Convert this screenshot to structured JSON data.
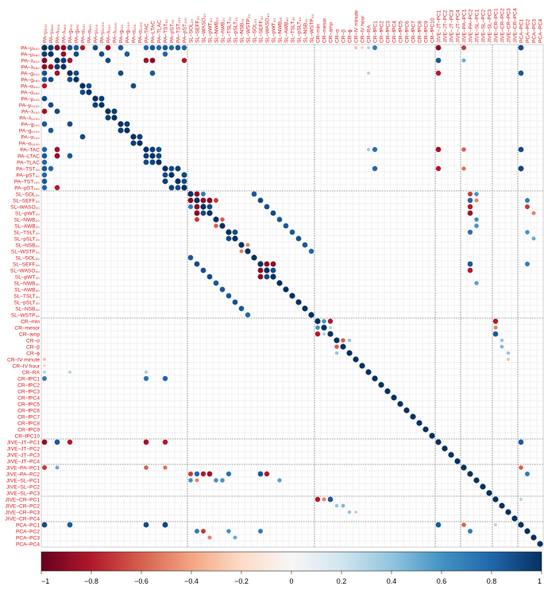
{
  "chart_data": {
    "type": "heatmap",
    "title": "",
    "xlabel": "",
    "ylabel": "",
    "variables": [
      "PA–μ₅₀₀",
      "PA–μ₉₆₀",
      "PA–λ₅₀₀",
      "PA–λ₉₆₀",
      "PA–g₅₀₀",
      "PA–g₉₆₀",
      "PA–α₅₀₀",
      "PA–α₉₆₀",
      "PA–μ₁₀₀",
      "PA–μ₁₀₀₀",
      "PA–λ₁₀₀",
      "PA–λ₁₀₀₀",
      "PA–g₁₀₀",
      "PA–g₁₀₀₀",
      "PA–α₁₀₀",
      "PA–α₁₀₀₀",
      "PA–TAC",
      "PA–LTAC",
      "PA–TLAC",
      "PA–TST₅₀",
      "PA–pST₅₀",
      "PA–TST₁₀₀",
      "PA–pST₁₀₀",
      "SL–SOL₂₀",
      "SL–SEFF₂₀",
      "SL–WASO₂₀",
      "SL–pWT₂₀",
      "SL–NWB₂₀",
      "SL–AWB₂₀",
      "SL–TSLT₂₀",
      "SL–pSLT₂₀",
      "SL–NSB₂₀",
      "SL–WSTP₂₀",
      "SL–SOL₄₀",
      "SL–SEFF₄₀",
      "SL–WASO₄₀",
      "SL–pWT₄₀",
      "SL–NWB₄₀",
      "SL–AWB₄₀",
      "SL–TSLT₄₀",
      "SL–pSLT₄₀",
      "SL–NSB₄₀",
      "SL–WSTP₄₀",
      "CR–min",
      "CR–mesor",
      "CR–amp",
      "CR–α",
      "CR–β",
      "CR–ϕ",
      "CR–IV minute",
      "CR–IV hour",
      "CR–RA",
      "CR–fPC1",
      "CR–fPC2",
      "CR–fPC3",
      "CR–fPC4",
      "CR–fPC5",
      "CR–fPC6",
      "CR–fPC7",
      "CR–fPC8",
      "CR–fPC9",
      "CR–fPC10",
      "JIVE–JT–PC1",
      "JIVE–JT–PC2",
      "JIVE–JT–PC3",
      "JIVE–JT–PC4",
      "JIVE–PA–PC1",
      "JIVE–PA–PC2",
      "JIVE–SL–PC1",
      "JIVE–SL–PC2",
      "JIVE–SL–PC3",
      "JIVE–CR–PC1",
      "JIVE–CR–PC2",
      "JIVE–CR–PC3",
      "JIVE–CR–PC4",
      "PCA–PC1",
      "PCA–PC2",
      "PCA–PC3",
      "PCA–PC4"
    ],
    "groups": [
      {
        "name": "PA",
        "start": 0,
        "count": 23
      },
      {
        "name": "SL",
        "start": 23,
        "count": 20
      },
      {
        "name": "CR",
        "start": 43,
        "count": 19
      },
      {
        "name": "JIVE-JT",
        "start": 62,
        "count": 4
      },
      {
        "name": "JIVE-PA-SL",
        "start": 66,
        "count": 5
      },
      {
        "name": "JIVE-CR",
        "start": 71,
        "count": 4
      },
      {
        "name": "PCA",
        "start": 75,
        "count": 4
      }
    ],
    "value_range": [
      -1,
      1
    ],
    "colorbar": {
      "ticks": [
        -1,
        -0.8,
        -0.6,
        -0.4,
        -0.2,
        0,
        0.2,
        0.4,
        0.6,
        0.8,
        1
      ],
      "tick_labels": [
        "−1",
        "−0.8",
        "−0.6",
        "−0.4",
        "−0.2",
        "0",
        "0.2",
        "0.4",
        "0.6",
        "0.8",
        "1"
      ],
      "stops": [
        "#67001f",
        "#b2182b",
        "#d6604d",
        "#f4a582",
        "#fddbc7",
        "#f7f7f7",
        "#d1e5f0",
        "#92c5de",
        "#4393c3",
        "#2166ac",
        "#053061"
      ]
    },
    "diagonal_value": 1,
    "cells": [
      [
        0,
        1,
        0.95
      ],
      [
        0,
        2,
        -0.92
      ],
      [
        0,
        3,
        -0.9
      ],
      [
        0,
        4,
        0.88
      ],
      [
        0,
        5,
        0.85
      ],
      [
        0,
        6,
        -0.8
      ],
      [
        0,
        8,
        0.9
      ],
      [
        0,
        10,
        -0.85
      ],
      [
        0,
        12,
        0.85
      ],
      [
        0,
        16,
        0.8
      ],
      [
        0,
        17,
        0.85
      ],
      [
        0,
        18,
        0.8
      ],
      [
        0,
        19,
        0.85
      ],
      [
        0,
        20,
        0.8
      ],
      [
        0,
        21,
        0.85
      ],
      [
        0,
        22,
        0.8
      ],
      [
        1,
        3,
        -0.88
      ],
      [
        1,
        5,
        0.9
      ],
      [
        1,
        9,
        0.9
      ],
      [
        1,
        13,
        0.85
      ],
      [
        1,
        19,
        0.8
      ],
      [
        2,
        3,
        0.95
      ],
      [
        2,
        4,
        -0.85
      ],
      [
        2,
        10,
        0.9
      ],
      [
        2,
        16,
        -0.85
      ],
      [
        2,
        17,
        -0.9
      ],
      [
        2,
        22,
        -0.8
      ],
      [
        4,
        5,
        0.9
      ],
      [
        4,
        12,
        0.9
      ],
      [
        4,
        17,
        0.85
      ],
      [
        6,
        7,
        0.9
      ],
      [
        6,
        14,
        0.9
      ],
      [
        8,
        9,
        0.95
      ],
      [
        10,
        11,
        0.95
      ],
      [
        12,
        13,
        0.95
      ],
      [
        14,
        15,
        0.95
      ],
      [
        16,
        17,
        0.95
      ],
      [
        16,
        18,
        0.9
      ],
      [
        17,
        18,
        0.92
      ],
      [
        19,
        20,
        0.9
      ],
      [
        19,
        21,
        0.95
      ],
      [
        20,
        22,
        0.92
      ],
      [
        21,
        22,
        0.9
      ],
      [
        23,
        24,
        -0.9
      ],
      [
        23,
        25,
        0.7
      ],
      [
        23,
        33,
        0.85
      ],
      [
        24,
        25,
        -0.9
      ],
      [
        24,
        26,
        -0.92
      ],
      [
        24,
        27,
        -0.7
      ],
      [
        24,
        34,
        0.9
      ],
      [
        25,
        26,
        0.9
      ],
      [
        25,
        35,
        0.88
      ],
      [
        26,
        36,
        0.9
      ],
      [
        27,
        28,
        -0.6
      ],
      [
        27,
        37,
        0.85
      ],
      [
        28,
        38,
        0.85
      ],
      [
        29,
        30,
        0.9
      ],
      [
        29,
        39,
        0.85
      ],
      [
        30,
        40,
        0.88
      ],
      [
        31,
        32,
        -0.5
      ],
      [
        31,
        41,
        0.85
      ],
      [
        32,
        42,
        0.8
      ],
      [
        34,
        35,
        -0.9
      ],
      [
        34,
        36,
        -0.9
      ],
      [
        35,
        36,
        0.9
      ],
      [
        43,
        44,
        0.6
      ],
      [
        43,
        45,
        -0.8
      ],
      [
        44,
        45,
        0.3
      ],
      [
        46,
        47,
        -0.6
      ],
      [
        46,
        48,
        0.4
      ],
      [
        0,
        49,
        -0.3
      ],
      [
        0,
        50,
        -0.25
      ],
      [
        0,
        51,
        0.3
      ],
      [
        0,
        52,
        0.7
      ],
      [
        4,
        51,
        0.3
      ],
      [
        16,
        51,
        0.35
      ],
      [
        16,
        52,
        0.75
      ],
      [
        19,
        52,
        0.8
      ],
      [
        0,
        62,
        -0.88
      ],
      [
        2,
        62,
        0.85
      ],
      [
        4,
        62,
        -0.8
      ],
      [
        16,
        62,
        -0.85
      ],
      [
        19,
        62,
        -0.8
      ],
      [
        0,
        75,
        0.9
      ],
      [
        4,
        75,
        0.85
      ],
      [
        16,
        75,
        0.9
      ],
      [
        19,
        75,
        0.92
      ],
      [
        0,
        66,
        -0.7
      ],
      [
        2,
        66,
        0.5
      ],
      [
        16,
        66,
        -0.6
      ],
      [
        19,
        66,
        -0.55
      ],
      [
        23,
        67,
        -0.7
      ],
      [
        24,
        67,
        0.8
      ],
      [
        25,
        67,
        -0.8
      ],
      [
        26,
        67,
        -0.85
      ],
      [
        29,
        67,
        0.75
      ],
      [
        34,
        67,
        0.85
      ],
      [
        35,
        67,
        -0.8
      ],
      [
        23,
        68,
        0.6
      ],
      [
        24,
        68,
        -0.5
      ],
      [
        27,
        68,
        0.6
      ],
      [
        28,
        68,
        0.6
      ],
      [
        37,
        68,
        0.55
      ],
      [
        24,
        76,
        0.7
      ],
      [
        25,
        76,
        -0.7
      ],
      [
        29,
        76,
        0.6
      ],
      [
        34,
        76,
        0.7
      ],
      [
        26,
        77,
        -0.5
      ],
      [
        30,
        77,
        0.5
      ],
      [
        43,
        71,
        -0.8
      ],
      [
        44,
        71,
        -0.5
      ],
      [
        45,
        71,
        0.85
      ],
      [
        46,
        72,
        0.4
      ],
      [
        47,
        72,
        0.45
      ],
      [
        48,
        73,
        0.4
      ],
      [
        49,
        73,
        -0.3
      ],
      [
        62,
        75,
        0.85
      ],
      [
        66,
        75,
        -0.6
      ],
      [
        67,
        76,
        0.7
      ],
      [
        71,
        75,
        0.3
      ]
    ]
  }
}
